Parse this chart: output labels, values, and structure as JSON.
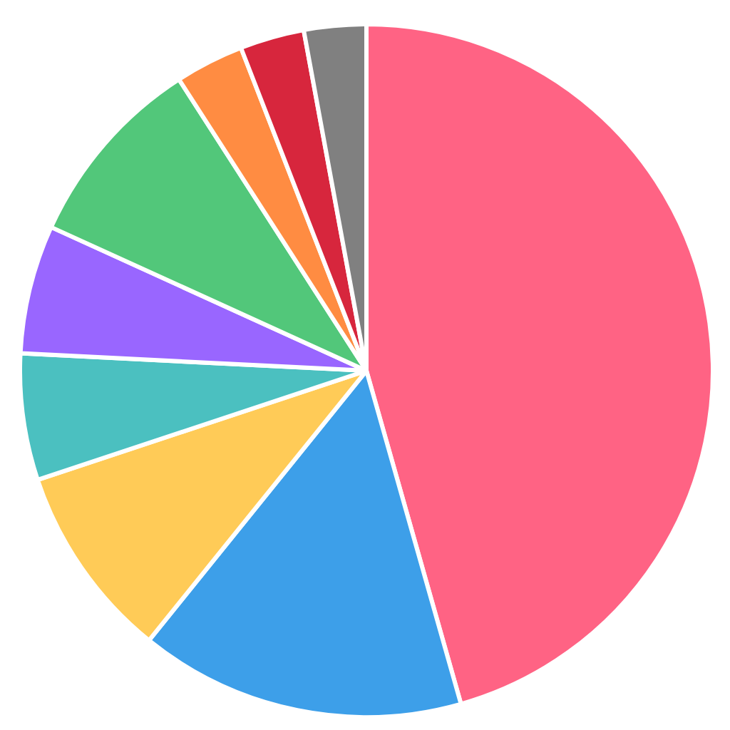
{
  "chart_data": {
    "type": "pie",
    "categories": [
      null,
      null,
      null,
      null,
      null,
      null,
      null,
      null,
      null
    ],
    "values": [
      45.6,
      15.2,
      9.1,
      5.9,
      6.0,
      9.1,
      3.2,
      3.0,
      2.9
    ],
    "colors": [
      "#ff6384",
      "#3d9fe9",
      "#ffcb57",
      "#4bc0c0",
      "#9966ff",
      "#52c77a",
      "#ff8c42",
      "#d7263d",
      "#808080"
    ]
  }
}
